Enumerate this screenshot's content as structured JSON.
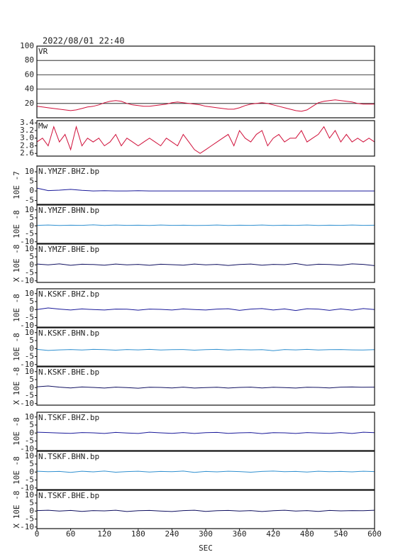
{
  "chart_data": [
    {
      "type": "line",
      "title": "2022/08/01 22:40",
      "x": [
        0,
        10,
        20,
        30,
        40,
        50,
        60,
        70,
        80,
        90,
        100,
        110,
        120,
        130,
        140,
        150,
        160,
        170,
        180,
        190,
        200,
        210,
        220,
        230,
        240,
        250,
        260,
        270,
        280,
        290,
        300,
        310,
        320,
        330,
        340,
        350,
        360,
        370,
        380,
        390,
        400,
        410,
        420,
        430,
        440,
        450,
        460,
        470,
        480,
        490,
        500,
        510,
        520,
        530,
        540,
        550,
        560,
        570,
        580,
        590,
        600
      ],
      "series": [
        {
          "name": "VR",
          "color": "#d0103a",
          "values": [
            16,
            15,
            14,
            13,
            12,
            11,
            10,
            11,
            13,
            15,
            16,
            18,
            21,
            23,
            24,
            23,
            20,
            18,
            17,
            16,
            16,
            17,
            18,
            19,
            21,
            22,
            21,
            20,
            19,
            18,
            16,
            15,
            14,
            13,
            12,
            12,
            14,
            17,
            19,
            20,
            21,
            20,
            18,
            16,
            14,
            12,
            10,
            9,
            11,
            16,
            21,
            23,
            24,
            25,
            24,
            23,
            22,
            20,
            19,
            19,
            19
          ]
        }
      ],
      "xlim": [
        0,
        600
      ],
      "ylim": [
        0,
        100
      ],
      "yticks": [
        20,
        40,
        60,
        80,
        100
      ],
      "grid": true
    },
    {
      "type": "line",
      "x": [
        0,
        10,
        20,
        30,
        40,
        50,
        60,
        70,
        80,
        90,
        100,
        110,
        120,
        130,
        140,
        150,
        160,
        170,
        180,
        190,
        200,
        210,
        220,
        230,
        240,
        250,
        260,
        270,
        280,
        290,
        300,
        310,
        320,
        330,
        340,
        350,
        360,
        370,
        380,
        390,
        400,
        410,
        420,
        430,
        440,
        450,
        460,
        470,
        480,
        490,
        500,
        510,
        520,
        530,
        540,
        550,
        560,
        570,
        580,
        590,
        600
      ],
      "series": [
        {
          "name": "Mw",
          "color": "#d0103a",
          "values": [
            2.9,
            3.0,
            2.8,
            3.3,
            2.9,
            3.1,
            2.7,
            3.3,
            2.8,
            3.0,
            2.9,
            3.0,
            2.8,
            2.9,
            3.1,
            2.8,
            3.0,
            2.9,
            2.8,
            2.9,
            3.0,
            2.9,
            2.8,
            3.0,
            2.9,
            2.8,
            3.1,
            2.9,
            2.7,
            2.6,
            2.7,
            2.8,
            2.9,
            3.0,
            3.1,
            2.8,
            3.2,
            3.0,
            2.9,
            3.1,
            3.2,
            2.8,
            3.0,
            3.1,
            2.9,
            3.0,
            3.0,
            3.2,
            2.9,
            3.0,
            3.1,
            3.3,
            3.0,
            3.2,
            2.9,
            3.1,
            2.9,
            3.0,
            2.9,
            3.0,
            2.9
          ]
        }
      ],
      "xlim": [
        0,
        600
      ],
      "ylim": [
        2.53,
        3.46
      ],
      "yticks": [
        {
          "value": 2.6,
          "label": "2.6"
        },
        {
          "value": 2.8,
          "label": "2.8"
        },
        {
          "value": 3.0,
          "label": "3.0"
        },
        {
          "value": 3.2,
          "label": "3.2"
        },
        {
          "value": 3.4,
          "label": "3.4"
        }
      ]
    },
    {
      "type": "line",
      "ylabel": "10E -7",
      "x": [
        0,
        20,
        40,
        60,
        80,
        100,
        120,
        140,
        160,
        180,
        200,
        220,
        240,
        260,
        280,
        300,
        320,
        340,
        360,
        380,
        400,
        420,
        440,
        460,
        480,
        500,
        520,
        540,
        560,
        580,
        600
      ],
      "series": [
        {
          "name": "N.YMZF.BHZ.bp",
          "color": "#1a1a9a",
          "values": [
            1.5,
            0.2,
            0.4,
            0.8,
            0.3,
            0,
            0.1,
            0,
            0,
            0.1,
            0,
            0,
            0,
            0,
            0,
            0,
            0,
            0,
            0,
            0,
            0,
            0,
            0,
            0,
            0,
            0,
            0,
            0,
            0,
            0,
            0
          ]
        }
      ],
      "xlim": [
        0,
        600
      ],
      "ylim": [
        -7,
        13
      ],
      "yticks": [
        -5,
        0,
        5,
        10
      ]
    },
    {
      "type": "line",
      "ylabel": "10E -8",
      "x": [
        0,
        20,
        40,
        60,
        80,
        100,
        120,
        140,
        160,
        180,
        200,
        220,
        240,
        260,
        280,
        300,
        320,
        340,
        360,
        380,
        400,
        420,
        440,
        460,
        480,
        500,
        520,
        540,
        560,
        580,
        600
      ],
      "series": [
        {
          "name": "N.YMZF.BHN.bp",
          "color": "#3090d0",
          "values": [
            0.3,
            0.5,
            0.2,
            0.4,
            0.3,
            0.6,
            0.2,
            0.5,
            0.3,
            0.4,
            0.2,
            0.5,
            0.3,
            0.4,
            0.2,
            0.3,
            0.5,
            0.2,
            0.4,
            0.3,
            0.5,
            0.2,
            0.4,
            0.3,
            0.5,
            0.2,
            0.4,
            0.3,
            0.5,
            0.3,
            0.4
          ]
        }
      ],
      "xlim": [
        0,
        600
      ],
      "ylim": [
        -11,
        13
      ],
      "yticks": [
        -10,
        -5,
        0,
        5,
        10
      ]
    },
    {
      "type": "line",
      "ylabel": "X 10E -8",
      "x": [
        0,
        20,
        40,
        60,
        80,
        100,
        120,
        140,
        160,
        180,
        200,
        220,
        240,
        260,
        280,
        300,
        320,
        340,
        360,
        380,
        400,
        420,
        440,
        460,
        480,
        500,
        520,
        540,
        560,
        580,
        600
      ],
      "series": [
        {
          "name": "N.YMZF.BHE.bp",
          "color": "#101060",
          "values": [
            0.5,
            0,
            0.6,
            -0.3,
            0.4,
            0.2,
            -0.2,
            0.5,
            0,
            0.3,
            -0.3,
            0.4,
            0.1,
            -0.2,
            0.5,
            0,
            0.3,
            -0.4,
            0.2,
            0.5,
            -0.2,
            0.3,
            0.1,
            0.8,
            -0.3,
            0.4,
            0.2,
            -0.2,
            0.6,
            0.3,
            -0.5
          ]
        }
      ],
      "xlim": [
        0,
        600
      ],
      "ylim": [
        -11,
        13
      ],
      "yticks": [
        -10,
        -5,
        0,
        5,
        10
      ]
    },
    {
      "type": "line",
      "ylabel": "10E -8",
      "x": [
        0,
        20,
        40,
        60,
        80,
        100,
        120,
        140,
        160,
        180,
        200,
        220,
        240,
        260,
        280,
        300,
        320,
        340,
        360,
        380,
        400,
        420,
        440,
        460,
        480,
        500,
        520,
        540,
        560,
        580,
        600
      ],
      "series": [
        {
          "name": "N.KSKF.BHZ.bp",
          "color": "#1a1a9a",
          "values": [
            0,
            1.0,
            0.3,
            -0.3,
            0.4,
            0,
            -0.3,
            0.3,
            0.2,
            -0.4,
            0.3,
            0.1,
            -0.3,
            0.4,
            0,
            -0.3,
            0.3,
            0.5,
            -0.5,
            0.3,
            0.6,
            -0.3,
            0.4,
            -0.6,
            0.5,
            0.3,
            -0.5,
            0.4,
            -0.4,
            0.6,
            0
          ]
        }
      ],
      "xlim": [
        0,
        600
      ],
      "ylim": [
        -11,
        13
      ],
      "yticks": [
        -10,
        -5,
        0,
        5,
        10
      ]
    },
    {
      "type": "line",
      "ylabel": "10E -8",
      "x": [
        0,
        20,
        40,
        60,
        80,
        100,
        120,
        140,
        160,
        180,
        200,
        220,
        240,
        260,
        280,
        300,
        320,
        340,
        360,
        380,
        400,
        420,
        440,
        460,
        480,
        500,
        520,
        540,
        560,
        580,
        600
      ],
      "series": [
        {
          "name": "N.KSKF.BHN.bp",
          "color": "#3090d0",
          "values": [
            -0.5,
            -1.2,
            -0.8,
            -0.6,
            -0.9,
            -0.5,
            -0.7,
            -1.0,
            -0.6,
            -0.8,
            -0.5,
            -0.9,
            -0.7,
            -0.6,
            -1.0,
            -0.7,
            -0.5,
            -0.9,
            -0.6,
            -0.8,
            -0.7,
            -1.3,
            -0.6,
            -0.8,
            -0.5,
            -0.9,
            -0.7,
            -0.6,
            -0.8,
            -0.9,
            -0.7
          ]
        }
      ],
      "xlim": [
        0,
        600
      ],
      "ylim": [
        -11,
        13
      ],
      "yticks": [
        -10,
        -5,
        0,
        5,
        10
      ]
    },
    {
      "type": "line",
      "ylabel": "X 10E -8",
      "x": [
        0,
        20,
        40,
        60,
        80,
        100,
        120,
        140,
        160,
        180,
        200,
        220,
        240,
        260,
        280,
        300,
        320,
        340,
        360,
        380,
        400,
        420,
        440,
        460,
        480,
        500,
        520,
        540,
        560,
        580,
        600
      ],
      "series": [
        {
          "name": "N.KSKF.BHE.bp",
          "color": "#101060",
          "values": [
            0.5,
            1.0,
            0.3,
            -0.2,
            0.4,
            0.1,
            -0.3,
            0.3,
            0,
            -0.4,
            0.2,
            0.1,
            -0.2,
            0.3,
            -0.3,
            0,
            0.2,
            -0.3,
            0.1,
            0.3,
            -0.2,
            0.2,
            0,
            -0.3,
            0.2,
            0.1,
            -0.2,
            0.3,
            0.4,
            0.2,
            0.3
          ]
        }
      ],
      "xlim": [
        0,
        600
      ],
      "ylim": [
        -11,
        13
      ],
      "yticks": [
        -10,
        -5,
        0,
        5,
        10
      ]
    },
    {
      "type": "line",
      "ylabel": "10E -8",
      "x": [
        0,
        20,
        40,
        60,
        80,
        100,
        120,
        140,
        160,
        180,
        200,
        220,
        240,
        260,
        280,
        300,
        320,
        340,
        360,
        380,
        400,
        420,
        440,
        460,
        480,
        500,
        520,
        540,
        560,
        580,
        600
      ],
      "series": [
        {
          "name": "N.TSKF.BHZ.bp",
          "color": "#1a1a9a",
          "values": [
            0.5,
            0.3,
            0,
            -0.2,
            0.3,
            0.1,
            -0.3,
            0.4,
            0,
            -0.3,
            0.5,
            0.1,
            -0.2,
            0.3,
            -0.3,
            0.2,
            0.4,
            -0.2,
            0.1,
            0.3,
            -0.4,
            0.2,
            0.1,
            -0.3,
            0.3,
            0,
            -0.2,
            0.3,
            -0.3,
            0.5,
            0.2
          ]
        }
      ],
      "xlim": [
        0,
        600
      ],
      "ylim": [
        -11,
        13
      ],
      "yticks": [
        -10,
        -5,
        0,
        5,
        10
      ]
    },
    {
      "type": "line",
      "ylabel": "10E -8",
      "x": [
        0,
        20,
        40,
        60,
        80,
        100,
        120,
        140,
        160,
        180,
        200,
        220,
        240,
        260,
        280,
        300,
        320,
        340,
        360,
        380,
        400,
        420,
        440,
        460,
        480,
        500,
        520,
        540,
        560,
        580,
        600
      ],
      "series": [
        {
          "name": "N.TSKF.BHN.bp",
          "color": "#3090d0",
          "values": [
            0.5,
            0.2,
            0.4,
            -0.2,
            0.5,
            0.1,
            0.6,
            -0.1,
            0.3,
            0.5,
            0,
            0.4,
            0.2,
            0.6,
            -0.2,
            0.4,
            0.1,
            0.5,
            0.3,
            -0.1,
            0.4,
            0.6,
            0.2,
            0.4,
            0,
            0.5,
            0.2,
            0.4,
            0.1,
            0.5,
            0.3
          ]
        }
      ],
      "xlim": [
        0,
        600
      ],
      "ylim": [
        -11,
        13
      ],
      "yticks": [
        -10,
        -5,
        0,
        5,
        10
      ]
    },
    {
      "type": "line",
      "ylabel": "X 10E -8",
      "xlabel": "SEC",
      "x": [
        0,
        20,
        40,
        60,
        80,
        100,
        120,
        140,
        160,
        180,
        200,
        220,
        240,
        260,
        280,
        300,
        320,
        340,
        360,
        380,
        400,
        420,
        440,
        460,
        480,
        500,
        520,
        540,
        560,
        580,
        600
      ],
      "series": [
        {
          "name": "N.TSKF.BHE.bp",
          "color": "#101060",
          "values": [
            0.3,
            0.5,
            0,
            0.4,
            -0.2,
            0.3,
            0.1,
            0.5,
            -0.3,
            0.2,
            0.4,
            0,
            -0.3,
            0.3,
            0.5,
            -0.2,
            0.2,
            0.4,
            0,
            0.3,
            -0.3,
            0.2,
            0.5,
            0,
            0.3,
            -0.2,
            0.4,
            0.1,
            0.3,
            0.2,
            0.5
          ]
        }
      ],
      "xlim": [
        0,
        600
      ],
      "ylim": [
        -11,
        13
      ],
      "xticks": [
        0,
        60,
        120,
        180,
        240,
        300,
        360,
        420,
        480,
        540,
        600
      ],
      "yticks": [
        -10,
        -5,
        0,
        5,
        10
      ]
    }
  ]
}
